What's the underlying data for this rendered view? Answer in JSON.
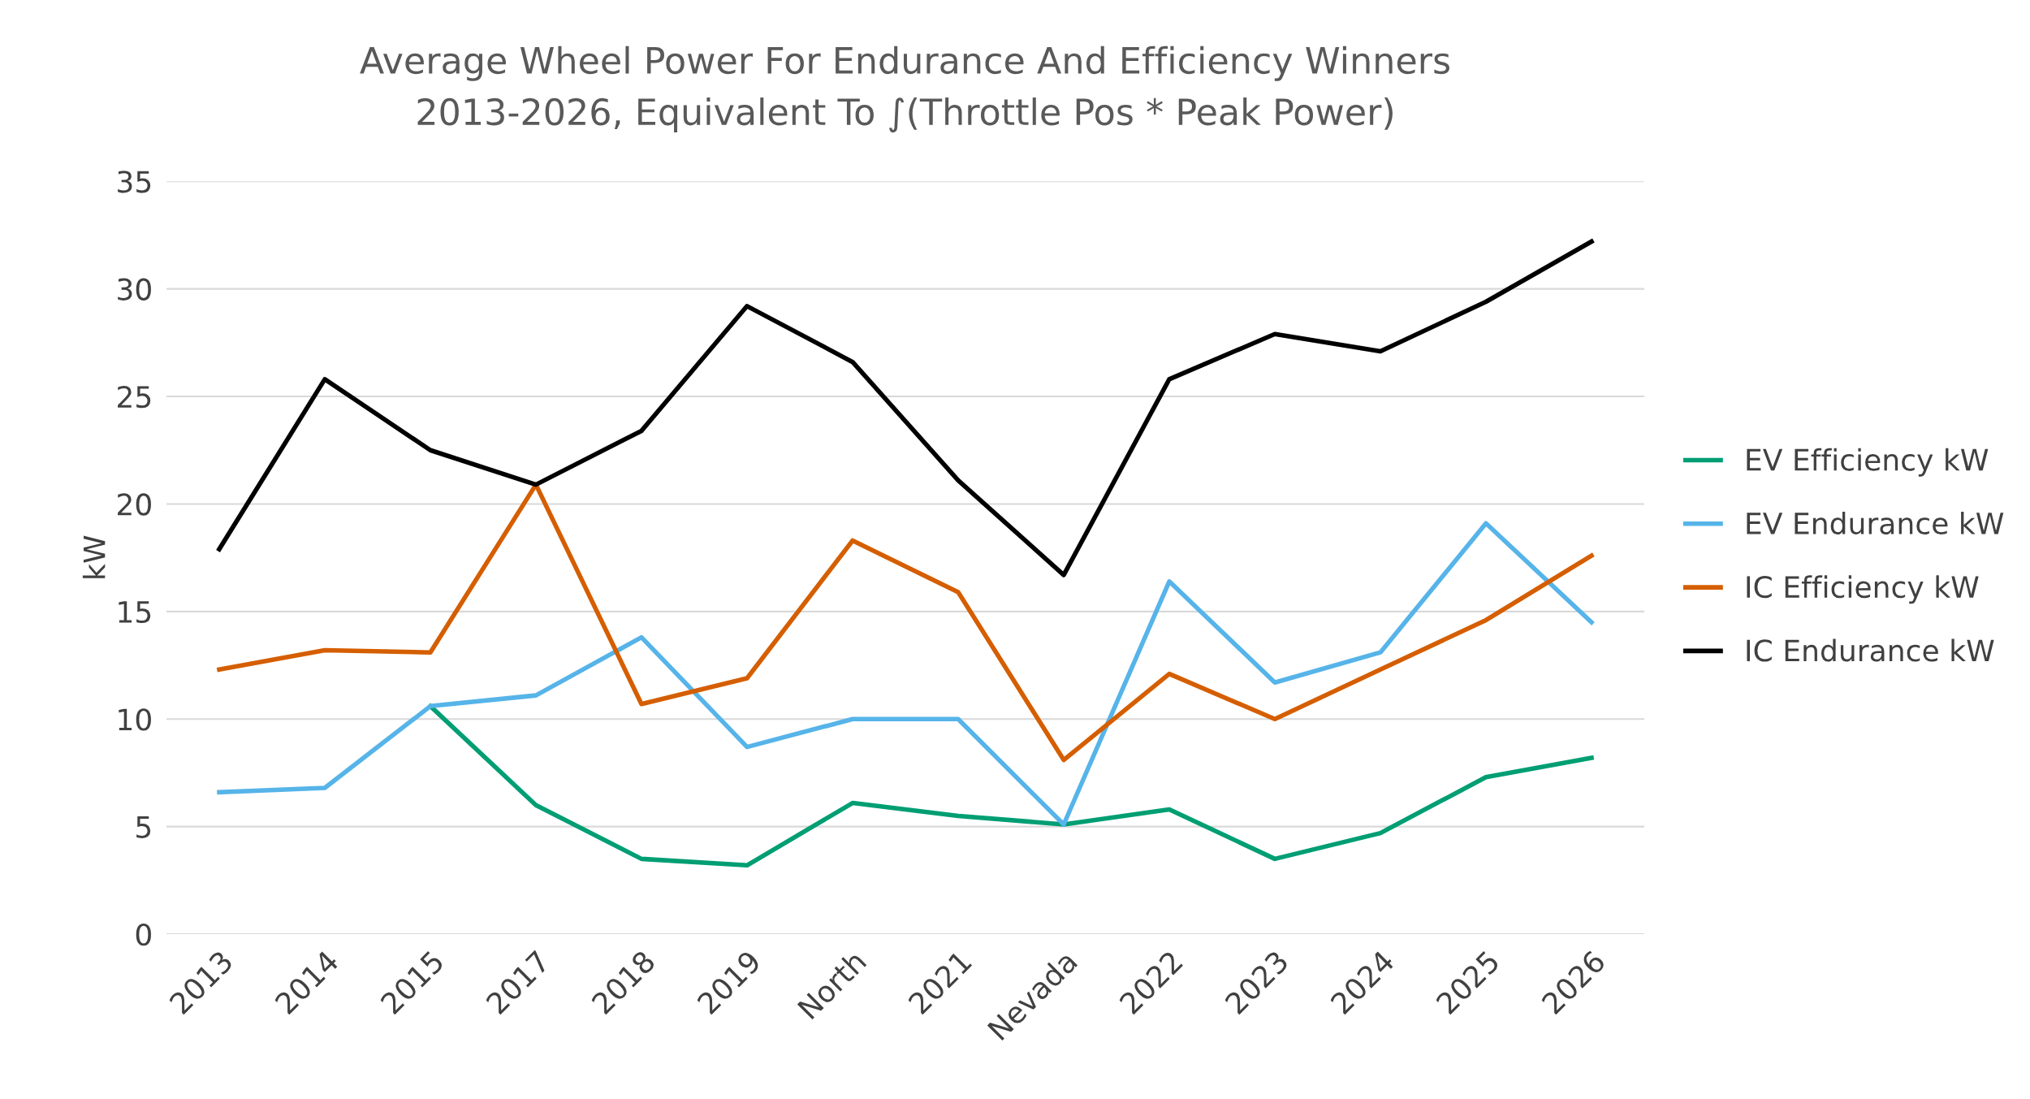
{
  "chart_data": {
    "type": "line",
    "title": "Average Wheel Power For Endurance And Efficiency Winners\n2013-2026, Equivalent To ∫(Throttle Pos * Peak Power)",
    "ylabel": "kW",
    "categories": [
      "2013",
      "2014",
      "2015",
      "2017",
      "2018",
      "2019",
      "North",
      "2021",
      "Nevada",
      "2022",
      "2023",
      "2024",
      "2025",
      "2026"
    ],
    "series": [
      {
        "name": "EV Efficiency kW",
        "color": "#009e73",
        "values": [
          null,
          null,
          10.6,
          6.0,
          3.5,
          3.2,
          6.1,
          5.5,
          5.1,
          5.8,
          3.5,
          4.7,
          7.3,
          8.2
        ]
      },
      {
        "name": "EV Endurance kW",
        "color": "#56b4e9",
        "values": [
          6.6,
          6.8,
          10.6,
          11.1,
          13.8,
          8.7,
          10.0,
          10.0,
          5.1,
          16.4,
          11.7,
          13.1,
          19.1,
          14.5
        ]
      },
      {
        "name": "IC Efficiency kW",
        "color": "#d55e00",
        "values": [
          12.3,
          13.2,
          13.1,
          20.9,
          10.7,
          11.9,
          18.3,
          15.9,
          8.1,
          12.1,
          10.0,
          12.3,
          14.6,
          17.6
        ]
      },
      {
        "name": "IC Endurance kW",
        "color": "#000000",
        "values": [
          17.9,
          25.8,
          22.5,
          20.9,
          23.4,
          29.2,
          26.6,
          21.1,
          16.7,
          25.8,
          27.9,
          27.1,
          29.4,
          32.2
        ]
      }
    ],
    "ylim": [
      0,
      35
    ],
    "yticks": [
      0,
      5,
      10,
      15,
      20,
      25,
      30,
      35
    ],
    "grid": "y",
    "legend": "right",
    "marker": "none",
    "line_style": "solid"
  }
}
